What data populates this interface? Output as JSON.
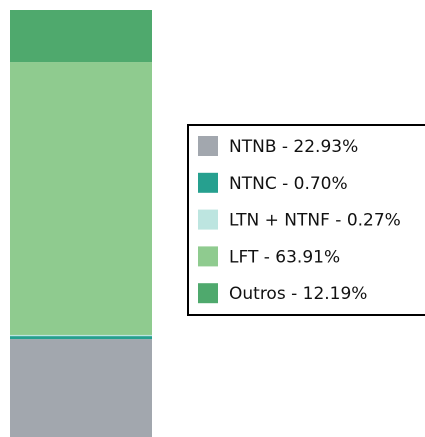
{
  "chart_data": {
    "type": "bar",
    "stacked": true,
    "series": [
      {
        "name": "NTNB - 22.93%",
        "color": "#a2a7ae",
        "values": [
          22.93
        ]
      },
      {
        "name": "NTNC - 0.70%",
        "color": "#26a08f",
        "values": [
          0.7
        ]
      },
      {
        "name": "LTN + NTNF - 0.27%",
        "color": "#bde5e0",
        "values": [
          0.27
        ]
      },
      {
        "name": "LFT - 63.91%",
        "color": "#8fcb8f",
        "values": [
          63.91
        ]
      },
      {
        "name": "Outros - 12.19%",
        "color": "#4fa96d",
        "values": [
          12.19
        ]
      }
    ]
  }
}
